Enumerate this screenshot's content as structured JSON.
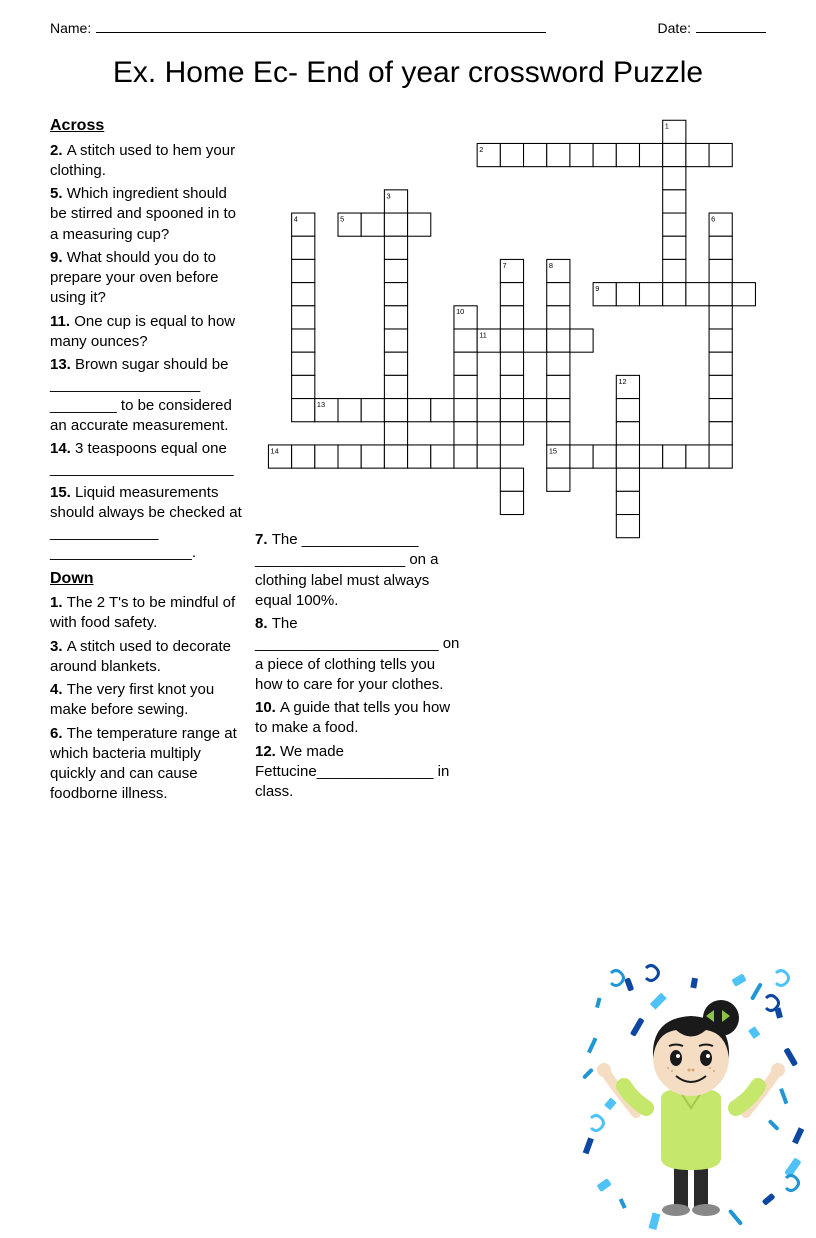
{
  "header": {
    "name_label": "Name:",
    "date_label": "Date:"
  },
  "title": "Ex. Home Ec- End of year crossword Puzzle",
  "sections": {
    "across": "Across",
    "down": "Down"
  },
  "clues": {
    "across": [
      {
        "num": "2.",
        "text": "A stitch used to hem your clothing."
      },
      {
        "num": "5.",
        "text": "Which ingredient should be stirred and spooned in to a measuring cup?"
      },
      {
        "num": "9.",
        "text": "What should you do to prepare your oven before using it?"
      },
      {
        "num": "11.",
        "text": "One cup is equal to how many ounces?"
      },
      {
        "num": "13.",
        "text": "Brown sugar should be __________________ ________ to be considered an accurate measurement."
      },
      {
        "num": "14.",
        "text": "3 teaspoons equal one ______________________"
      },
      {
        "num": "15.",
        "text": "Liquid measurements should always be checked at _____________ _________________."
      }
    ],
    "down": [
      {
        "num": "1.",
        "text": "The 2 T's to be mindful of with food safety."
      },
      {
        "num": "3.",
        "text": "A stitch used to decorate around blankets."
      },
      {
        "num": "4.",
        "text": "The very first knot you make before sewing."
      },
      {
        "num": "6.",
        "text": "The temperature range at which bacteria multiply quickly and can cause foodborne illness."
      }
    ],
    "down2": [
      {
        "num": "7.",
        "text": "The ______________ __________________ on a clothing label must always equal 100%."
      },
      {
        "num": "8.",
        "text": "The ______________________ on a piece of clothing tells you how to care for your clothes."
      },
      {
        "num": "10.",
        "text": "A guide that tells you how to make a food."
      },
      {
        "num": "12.",
        "text": "We made Fettucine______________ in class."
      }
    ]
  },
  "grid": {
    "cell_size": 22,
    "cells": [
      {
        "r": 0,
        "c": 16,
        "n": "1"
      },
      {
        "r": 1,
        "c": 8,
        "n": "2"
      },
      {
        "r": 1,
        "c": 9
      },
      {
        "r": 1,
        "c": 10
      },
      {
        "r": 1,
        "c": 11
      },
      {
        "r": 1,
        "c": 12
      },
      {
        "r": 1,
        "c": 13
      },
      {
        "r": 1,
        "c": 14
      },
      {
        "r": 1,
        "c": 15
      },
      {
        "r": 1,
        "c": 16
      },
      {
        "r": 1,
        "c": 17
      },
      {
        "r": 1,
        "c": 18
      },
      {
        "r": 2,
        "c": 16
      },
      {
        "r": 3,
        "c": 4,
        "n": "3"
      },
      {
        "r": 3,
        "c": 16
      },
      {
        "r": 4,
        "c": 0,
        "n": "4"
      },
      {
        "r": 4,
        "c": 2,
        "n": "5"
      },
      {
        "r": 4,
        "c": 3
      },
      {
        "r": 4,
        "c": 4
      },
      {
        "r": 4,
        "c": 5
      },
      {
        "r": 4,
        "c": 16
      },
      {
        "r": 4,
        "c": 18,
        "n": "6"
      },
      {
        "r": 5,
        "c": 0
      },
      {
        "r": 5,
        "c": 4
      },
      {
        "r": 5,
        "c": 16
      },
      {
        "r": 5,
        "c": 18
      },
      {
        "r": 6,
        "c": 0
      },
      {
        "r": 6,
        "c": 4
      },
      {
        "r": 6,
        "c": 9,
        "n": "7"
      },
      {
        "r": 6,
        "c": 11,
        "n": "8"
      },
      {
        "r": 6,
        "c": 16
      },
      {
        "r": 6,
        "c": 18
      },
      {
        "r": 7,
        "c": 0
      },
      {
        "r": 7,
        "c": 4
      },
      {
        "r": 7,
        "c": 9
      },
      {
        "r": 7,
        "c": 11
      },
      {
        "r": 7,
        "c": 13,
        "n": "9"
      },
      {
        "r": 7,
        "c": 14
      },
      {
        "r": 7,
        "c": 15
      },
      {
        "r": 7,
        "c": 16
      },
      {
        "r": 7,
        "c": 17
      },
      {
        "r": 7,
        "c": 18
      },
      {
        "r": 7,
        "c": 19
      },
      {
        "r": 8,
        "c": 0
      },
      {
        "r": 8,
        "c": 4
      },
      {
        "r": 8,
        "c": 7,
        "n": "10"
      },
      {
        "r": 8,
        "c": 9
      },
      {
        "r": 8,
        "c": 11
      },
      {
        "r": 8,
        "c": 18
      },
      {
        "r": 9,
        "c": 0
      },
      {
        "r": 9,
        "c": 4
      },
      {
        "r": 9,
        "c": 7
      },
      {
        "r": 9,
        "c": 8,
        "n": "11"
      },
      {
        "r": 9,
        "c": 9
      },
      {
        "r": 9,
        "c": 10
      },
      {
        "r": 9,
        "c": 11
      },
      {
        "r": 9,
        "c": 12
      },
      {
        "r": 9,
        "c": 18
      },
      {
        "r": 10,
        "c": 0
      },
      {
        "r": 10,
        "c": 4
      },
      {
        "r": 10,
        "c": 7
      },
      {
        "r": 10,
        "c": 9
      },
      {
        "r": 10,
        "c": 11
      },
      {
        "r": 10,
        "c": 18
      },
      {
        "r": 11,
        "c": 0
      },
      {
        "r": 11,
        "c": 4
      },
      {
        "r": 11,
        "c": 7
      },
      {
        "r": 11,
        "c": 9
      },
      {
        "r": 11,
        "c": 11
      },
      {
        "r": 11,
        "c": 14,
        "n": "12"
      },
      {
        "r": 11,
        "c": 18
      },
      {
        "r": 12,
        "c": 0
      },
      {
        "r": 12,
        "c": 1,
        "n": "13"
      },
      {
        "r": 12,
        "c": 2
      },
      {
        "r": 12,
        "c": 3
      },
      {
        "r": 12,
        "c": 4
      },
      {
        "r": 12,
        "c": 5
      },
      {
        "r": 12,
        "c": 6
      },
      {
        "r": 12,
        "c": 7
      },
      {
        "r": 12,
        "c": 8
      },
      {
        "r": 12,
        "c": 9
      },
      {
        "r": 12,
        "c": 10
      },
      {
        "r": 12,
        "c": 11
      },
      {
        "r": 12,
        "c": 14
      },
      {
        "r": 12,
        "c": 18
      },
      {
        "r": 13,
        "c": 4
      },
      {
        "r": 13,
        "c": 7
      },
      {
        "r": 13,
        "c": 9
      },
      {
        "r": 13,
        "c": 11
      },
      {
        "r": 13,
        "c": 14
      },
      {
        "r": 13,
        "c": 18
      },
      {
        "r": 14,
        "c": -1,
        "n": "14"
      },
      {
        "r": 14,
        "c": 0
      },
      {
        "r": 14,
        "c": 1
      },
      {
        "r": 14,
        "c": 2
      },
      {
        "r": 14,
        "c": 3
      },
      {
        "r": 14,
        "c": 4
      },
      {
        "r": 14,
        "c": 5
      },
      {
        "r": 14,
        "c": 6
      },
      {
        "r": 14,
        "c": 7
      },
      {
        "r": 14,
        "c": 8
      },
      {
        "r": 14,
        "c": 11,
        "n": "15"
      },
      {
        "r": 14,
        "c": 12
      },
      {
        "r": 14,
        "c": 13
      },
      {
        "r": 14,
        "c": 14
      },
      {
        "r": 14,
        "c": 15
      },
      {
        "r": 14,
        "c": 16
      },
      {
        "r": 14,
        "c": 17
      },
      {
        "r": 14,
        "c": 18
      },
      {
        "r": 15,
        "c": 9
      },
      {
        "r": 15,
        "c": 11
      },
      {
        "r": 15,
        "c": 14
      },
      {
        "r": 16,
        "c": 9
      },
      {
        "r": 16,
        "c": 14
      },
      {
        "r": 17,
        "c": 14
      }
    ]
  },
  "colors": {
    "confetti_blue1": "#2196d4",
    "confetti_blue2": "#0d47a1",
    "confetti_blue3": "#4fc3f7",
    "skin": "#f5ddc4",
    "hair": "#1a1a1a",
    "shirt": "#c5e86c",
    "pants": "#2a2a2a",
    "bow": "#8bc34a",
    "shoes": "#888888"
  }
}
